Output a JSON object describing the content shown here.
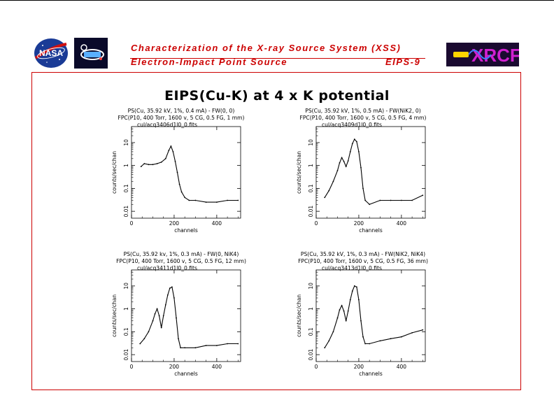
{
  "header": {
    "title": "Characterization of the X-ray Source System (XSS)",
    "subtitle": "Electron-Impact Point Source",
    "code": "EIPS-9",
    "logo_left": "NASA",
    "logo_right": "XRCF",
    "accent_color": "#cc0000"
  },
  "main_title": "EIPS(Cu-K) at 4 x K potential",
  "chart_data": [
    {
      "type": "line",
      "title_lines": [
        "PS(Cu, 35.92 kV, 1%, 0.4 mA) - FW(0, 0)",
        "FPC(P10, 400 Torr, 1600 v, 5 CG, 0.5 FG, 1 mm)",
        "cul/acq3406d1l0_0.fits"
      ],
      "xlabel": "channels",
      "ylabel": "counts/sec/chan",
      "xlim": [
        0,
        512
      ],
      "ylim": [
        0.005,
        50
      ],
      "yscale": "log",
      "xticks": [
        "0",
        "200",
        "400"
      ],
      "yticks": [
        "0.01",
        "0.1",
        "1",
        "10"
      ],
      "series": [
        {
          "x": [
            45,
            60,
            80,
            100,
            120,
            140,
            160,
            175,
            185,
            195,
            205,
            215,
            225,
            235,
            250,
            270,
            300,
            350,
            400,
            450,
            500
          ],
          "values": [
            0.9,
            1.2,
            1.1,
            1.1,
            1.2,
            1.4,
            2.0,
            4.5,
            7.0,
            4.0,
            1.5,
            0.5,
            0.15,
            0.07,
            0.04,
            0.03,
            0.03,
            0.025,
            0.025,
            0.03,
            0.03
          ]
        }
      ]
    },
    {
      "type": "line",
      "title_lines": [
        "PS(Cu, 35.92 kV, 1%, 0.5 mA) - FW(NiK2, 0)",
        "FPC(P10, 400 Torr, 1600 v, 5 CG, 0.5 FG, 4 mm)",
        "cul/acq3409d1l0_0.fits"
      ],
      "xlabel": "channels",
      "ylabel": "counts/sec/chan",
      "xlim": [
        0,
        512
      ],
      "ylim": [
        0.005,
        50
      ],
      "yscale": "log",
      "xticks": [
        "0",
        "200",
        "400"
      ],
      "yticks": [
        "0.01",
        "0.1",
        "1",
        "10"
      ],
      "series": [
        {
          "x": [
            40,
            60,
            80,
            100,
            110,
            120,
            130,
            140,
            150,
            160,
            170,
            180,
            190,
            200,
            210,
            220,
            230,
            250,
            300,
            350,
            400,
            450,
            500
          ],
          "values": [
            0.04,
            0.08,
            0.2,
            0.6,
            1.3,
            2.2,
            1.5,
            0.9,
            1.6,
            4.0,
            9.0,
            14.0,
            11.0,
            4.0,
            0.8,
            0.1,
            0.03,
            0.02,
            0.03,
            0.03,
            0.03,
            0.03,
            0.05
          ]
        }
      ]
    },
    {
      "type": "line",
      "title_lines": [
        "PS(Cu, 35.92 kv, 1%, 0.3 mA) - FW(0, NiK4)",
        "FPC(P10, 400 Torr, 1600 v, 5 CG, 0.5 FG, 12 mm)",
        "cul/acq3411d1l0_0.fits"
      ],
      "xlabel": "channels",
      "ylabel": "counts/sec/chan",
      "xlim": [
        0,
        512
      ],
      "ylim": [
        0.005,
        50
      ],
      "yscale": "log",
      "xticks": [
        "0",
        "200",
        "400"
      ],
      "yticks": [
        "0.01",
        "0.1",
        "1",
        "10"
      ],
      "series": [
        {
          "x": [
            40,
            60,
            80,
            100,
            110,
            120,
            130,
            140,
            150,
            160,
            170,
            180,
            190,
            200,
            210,
            220,
            230,
            250,
            300,
            350,
            400,
            450,
            500
          ],
          "values": [
            0.03,
            0.05,
            0.1,
            0.3,
            0.6,
            1.0,
            0.5,
            0.15,
            0.5,
            1.5,
            4.0,
            8.0,
            9.0,
            3.0,
            0.4,
            0.05,
            0.02,
            0.02,
            0.02,
            0.025,
            0.025,
            0.03,
            0.03
          ]
        }
      ]
    },
    {
      "type": "line",
      "title_lines": [
        "PS(Cu, 35.92 kV, 1%, 0.3 mA) - FW(NiK2, NiK4)",
        "FPC(P10, 400 Torr, 1600 v, 5 CG, 0.5 FG, 36 mm)",
        "cul/acq3413d1l0_0.fits"
      ],
      "xlabel": "channels",
      "ylabel": "counts/sec/chan",
      "xlim": [
        0,
        512
      ],
      "ylim": [
        0.005,
        50
      ],
      "yscale": "log",
      "xticks": [
        "0",
        "200",
        "400"
      ],
      "yticks": [
        "0.01",
        "0.1",
        "1",
        "10"
      ],
      "series": [
        {
          "x": [
            40,
            60,
            80,
            100,
            110,
            120,
            130,
            140,
            150,
            160,
            170,
            180,
            190,
            200,
            210,
            220,
            230,
            250,
            300,
            350,
            400,
            450,
            500
          ],
          "values": [
            0.02,
            0.04,
            0.1,
            0.4,
            0.9,
            1.4,
            0.8,
            0.3,
            0.8,
            2.5,
            6.0,
            10.0,
            9.0,
            2.5,
            0.3,
            0.06,
            0.03,
            0.03,
            0.04,
            0.05,
            0.06,
            0.09,
            0.12
          ]
        }
      ]
    }
  ]
}
